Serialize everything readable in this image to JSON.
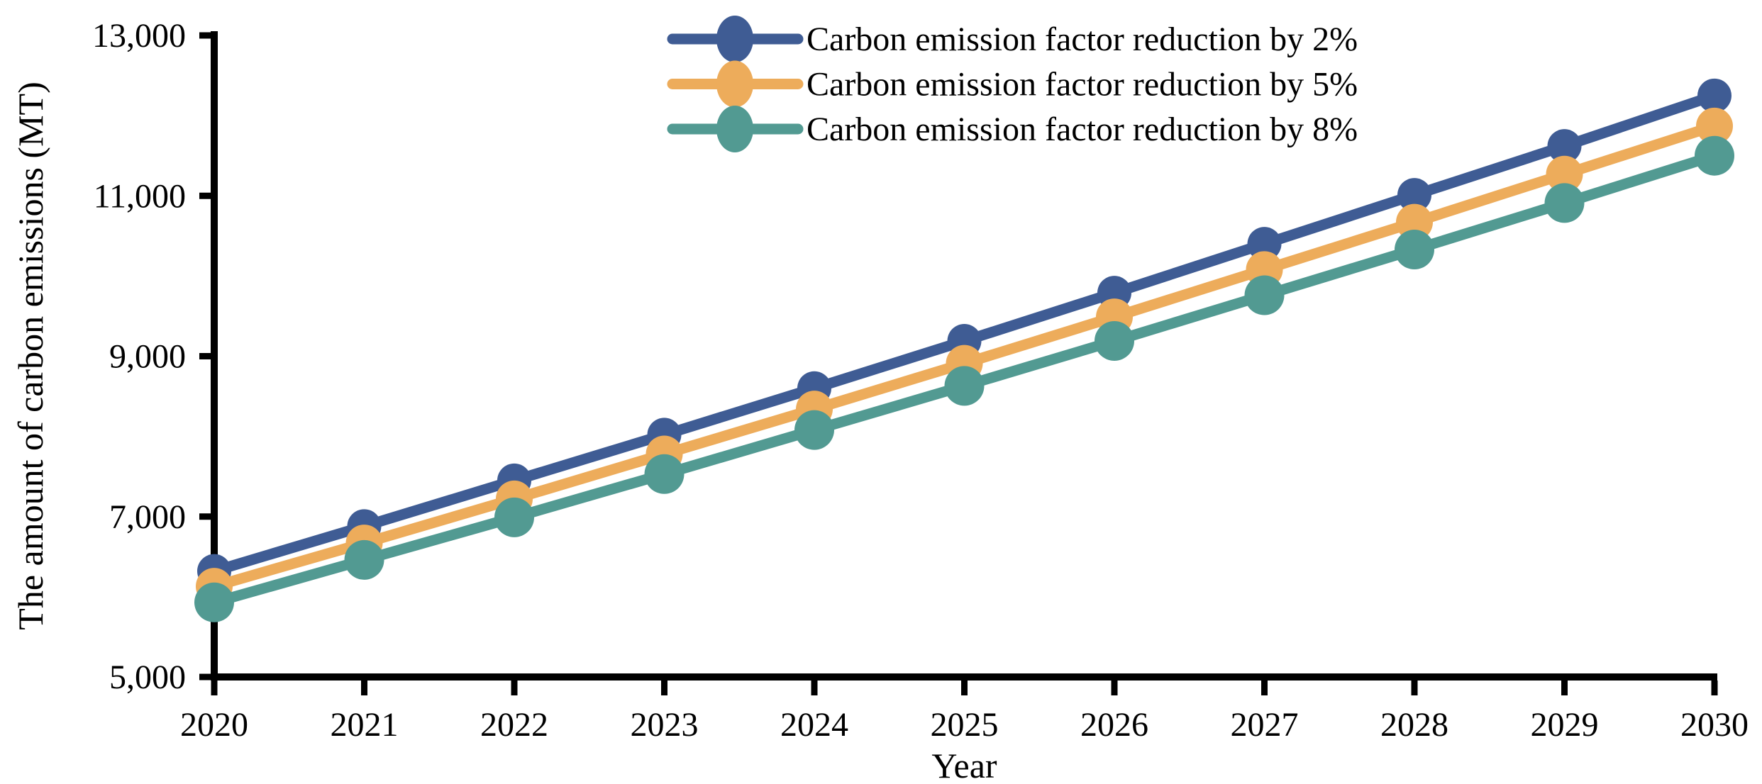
{
  "figure": {
    "background_color": "#FFFFFF",
    "axis_color": "#000000",
    "text_color": "#000000"
  },
  "chart_data": {
    "type": "line",
    "title": "",
    "xlabel": "Year",
    "ylabel": "The amount of carbon emissions (MT)",
    "x": [
      2020,
      2021,
      2022,
      2023,
      2024,
      2025,
      2026,
      2027,
      2028,
      2029,
      2030
    ],
    "xtick_labels": [
      "2020",
      "2021",
      "2022",
      "2023",
      "2024",
      "2025",
      "2026",
      "2027",
      "2028",
      "2029",
      "2030"
    ],
    "ylim": [
      5000,
      13000
    ],
    "ytick_values": [
      5000,
      7000,
      9000,
      11000,
      13000
    ],
    "ytick_labels": [
      "5,000",
      "7,000",
      "9,000",
      "11,000",
      "13,000"
    ],
    "grid": false,
    "legend_position": "top-center",
    "series": [
      {
        "name": "Carbon emission factor reduction by 2%",
        "color": "#3F5C94",
        "marker": "circle",
        "marker_radius": 24,
        "values": [
          6320,
          6880,
          7450,
          8020,
          8600,
          9190,
          9790,
          10400,
          11010,
          11620,
          12250
        ]
      },
      {
        "name": "Carbon emission factor reduction by 5%",
        "color": "#EDAC5B",
        "marker": "circle",
        "marker_radius": 26,
        "values": [
          6130,
          6670,
          7220,
          7780,
          8340,
          8910,
          9490,
          10080,
          10670,
          11270,
          11870
        ]
      },
      {
        "name": "Carbon emission factor reduction by 8%",
        "color": "#529A92",
        "marker": "circle",
        "marker_radius": 28,
        "values": [
          5930,
          6460,
          6990,
          7530,
          8080,
          8630,
          9190,
          9760,
          10330,
          10910,
          11500
        ]
      }
    ]
  }
}
